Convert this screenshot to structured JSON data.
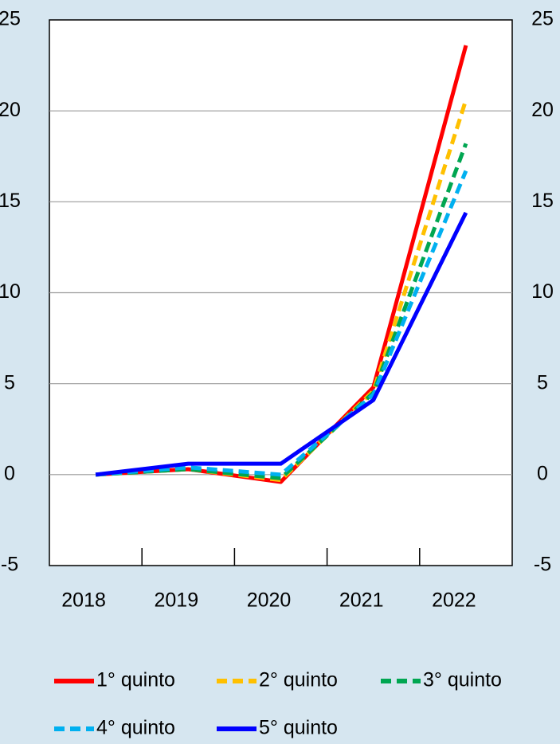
{
  "chart_data": {
    "type": "line",
    "categories": [
      "2018",
      "2019",
      "2020",
      "2021",
      "2022"
    ],
    "series": [
      {
        "name": "1° quinto",
        "color": "#ff0000",
        "dashed": false,
        "values": [
          0,
          0.3,
          -0.4,
          4.8,
          23.6
        ]
      },
      {
        "name": "2° quinto",
        "color": "#ffc000",
        "dashed": true,
        "values": [
          0,
          0.3,
          -0.3,
          4.6,
          20.6
        ]
      },
      {
        "name": "3° quinto",
        "color": "#00a651",
        "dashed": true,
        "values": [
          0,
          0.3,
          -0.2,
          4.5,
          18.2
        ]
      },
      {
        "name": "4° quinto",
        "color": "#00b0f0",
        "dashed": true,
        "values": [
          0,
          0.4,
          0,
          4.4,
          16.7
        ]
      },
      {
        "name": "5° quinto",
        "color": "#0000ff",
        "dashed": false,
        "values": [
          0,
          0.6,
          0.6,
          4.1,
          14.4
        ]
      }
    ],
    "ylim": [
      -5,
      25
    ],
    "yticks": [
      -5,
      0,
      5,
      10,
      15,
      20,
      25
    ],
    "y2lim": [
      -5,
      25
    ],
    "y2ticks": [
      -5,
      0,
      5,
      10,
      15,
      20,
      25
    ],
    "grid": true
  }
}
